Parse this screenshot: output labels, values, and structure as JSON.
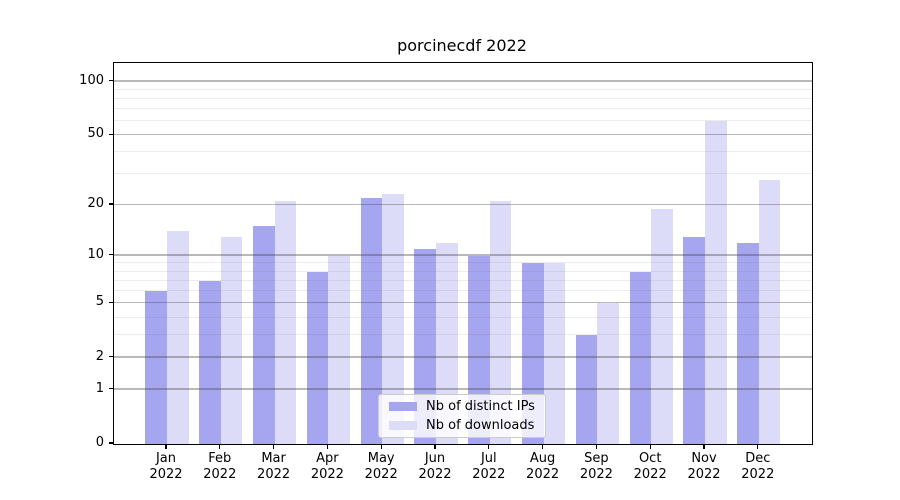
{
  "title": "porcinecdf 2022",
  "chart_data": {
    "type": "bar",
    "title": "porcinecdf 2022",
    "categories": [
      "Jan",
      "Feb",
      "Mar",
      "Apr",
      "May",
      "Jun",
      "Jul",
      "Aug",
      "Sep",
      "Oct",
      "Nov",
      "Dec"
    ],
    "year_label": "2022",
    "series": [
      {
        "name": "Nb of distinct IPs",
        "color": "#a5a5f0",
        "values": [
          6,
          7,
          15,
          8,
          22,
          11,
          10,
          9,
          3,
          8,
          13,
          12
        ]
      },
      {
        "name": "Nb of downloads",
        "color": "#dcdcf8",
        "values": [
          14,
          13,
          21,
          10,
          23,
          12,
          21,
          9,
          5,
          19,
          60,
          28
        ]
      }
    ],
    "y_axis": {
      "scale": "log1p",
      "tick_labels": [
        "0",
        "1",
        "2",
        "5",
        "10",
        "20",
        "50",
        "100"
      ],
      "ticks": [
        0,
        1,
        2,
        5,
        10,
        20,
        50,
        100
      ],
      "minor_ticks": [
        3,
        4,
        6,
        7,
        8,
        9,
        30,
        40,
        60,
        70,
        80,
        90
      ],
      "range": [
        0,
        126
      ],
      "grid": true
    },
    "legend_position": "lower center"
  }
}
